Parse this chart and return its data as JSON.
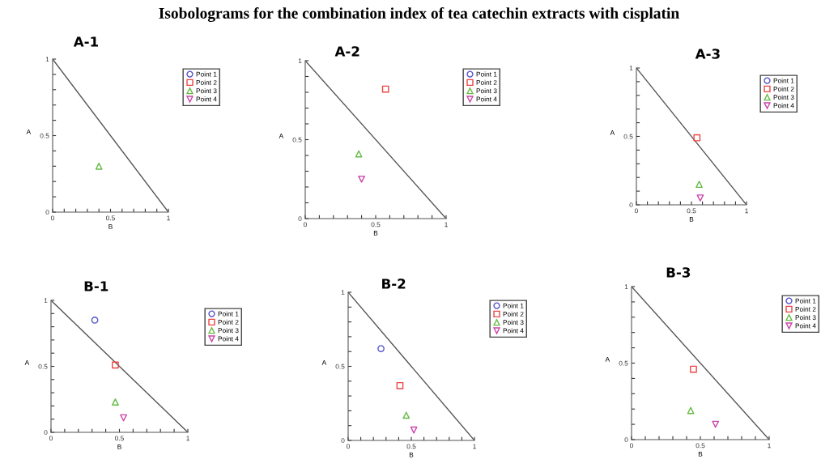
{
  "chart_data": [
    {
      "type": "scatter",
      "title": "A-1",
      "annotations": [
        "Isobolograms for the combination index of tea catechin extracts with cisplatin"
      ],
      "xlabel": "B",
      "ylabel": "A",
      "xlim": [
        0,
        1
      ],
      "ylim": [
        0,
        1
      ],
      "xticks": [
        0,
        {
          "value": 0.1,
          "label": null
        },
        {
          "value": 0.2,
          "label": null
        },
        {
          "value": 0.3,
          "label": null
        },
        {
          "value": 0.4,
          "label": null
        },
        0.5,
        {
          "value": 0.6,
          "label": null
        },
        {
          "value": 0.7,
          "label": null
        },
        {
          "value": 0.8,
          "label": null
        },
        {
          "value": 0.9,
          "label": null
        },
        1
      ],
      "yticks": [
        0,
        {
          "value": 0.1,
          "label": null
        },
        {
          "value": 0.2,
          "label": null
        },
        {
          "value": 0.3,
          "label": null
        },
        {
          "value": 0.4,
          "label": null
        },
        0.5,
        {
          "value": 0.6,
          "label": null
        },
        {
          "value": 0.7,
          "label": null
        },
        {
          "value": 0.8,
          "label": null
        },
        {
          "value": 0.9,
          "label": null
        },
        1
      ],
      "legend": "right",
      "grid": false,
      "series": [
        {
          "type": "line",
          "color": "#555555",
          "x": [
            0,
            1
          ],
          "values": [
            1,
            0
          ]
        },
        {
          "name": "Point 1",
          "color": "#5555cc",
          "marker": "circle"
        },
        {
          "name": "Point 2",
          "color": "#ee4444",
          "marker": "square"
        },
        {
          "name": "Point 3",
          "color": "#66bb44",
          "marker": "triangle",
          "x": [
            0.4
          ],
          "values": [
            0.3
          ]
        },
        {
          "name": "Point 4",
          "color": "#cc44aa",
          "marker": "triangle_down"
        }
      ]
    },
    {
      "type": "scatter",
      "title": "A-2",
      "xlabel": "B",
      "ylabel": "A",
      "xlim": [
        0,
        1
      ],
      "ylim": [
        0,
        1
      ],
      "xticks": [
        0,
        {
          "value": 0.1,
          "label": null
        },
        {
          "value": 0.2,
          "label": null
        },
        {
          "value": 0.3,
          "label": null
        },
        {
          "value": 0.4,
          "label": null
        },
        0.5,
        {
          "value": 0.6,
          "label": null
        },
        {
          "value": 0.7,
          "label": null
        },
        {
          "value": 0.8,
          "label": null
        },
        {
          "value": 0.9,
          "label": null
        },
        1
      ],
      "yticks": [
        0,
        {
          "value": 0.1,
          "label": null
        },
        {
          "value": 0.2,
          "label": null
        },
        {
          "value": 0.3,
          "label": null
        },
        {
          "value": 0.4,
          "label": null
        },
        0.5,
        {
          "value": 0.6,
          "label": null
        },
        {
          "value": 0.7,
          "label": null
        },
        {
          "value": 0.8,
          "label": null
        },
        {
          "value": 0.9,
          "label": null
        },
        1
      ],
      "legend": "right",
      "grid": false,
      "series": [
        {
          "type": "line",
          "color": "#555555",
          "x": [
            0,
            1
          ],
          "values": [
            1,
            0
          ]
        },
        {
          "name": "Point 1",
          "color": "#5555cc",
          "marker": "circle"
        },
        {
          "name": "Point 2",
          "color": "#ee4444",
          "marker": "square",
          "x": [
            0.57
          ],
          "values": [
            0.82
          ]
        },
        {
          "name": "Point 3",
          "color": "#66bb44",
          "marker": "triangle",
          "x": [
            0.38
          ],
          "values": [
            0.41
          ]
        },
        {
          "name": "Point 4",
          "color": "#cc44aa",
          "marker": "triangle_down",
          "x": [
            0.4
          ],
          "values": [
            0.25
          ]
        }
      ]
    },
    {
      "type": "scatter",
      "title": "A-3",
      "xlabel": "B",
      "ylabel": "A",
      "xlim": [
        0,
        1
      ],
      "ylim": [
        0,
        1
      ],
      "xticks": [
        0,
        {
          "value": 0.1,
          "label": null
        },
        {
          "value": 0.2,
          "label": null
        },
        {
          "value": 0.3,
          "label": null
        },
        {
          "value": 0.4,
          "label": null
        },
        0.5,
        {
          "value": 0.6,
          "label": null
        },
        {
          "value": 0.7,
          "label": null
        },
        {
          "value": 0.8,
          "label": null
        },
        {
          "value": 0.9,
          "label": null
        },
        1
      ],
      "yticks": [
        0,
        {
          "value": 0.1,
          "label": null
        },
        {
          "value": 0.2,
          "label": null
        },
        {
          "value": 0.3,
          "label": null
        },
        {
          "value": 0.4,
          "label": null
        },
        0.5,
        {
          "value": 0.6,
          "label": null
        },
        {
          "value": 0.7,
          "label": null
        },
        {
          "value": 0.8,
          "label": null
        },
        {
          "value": 0.9,
          "label": null
        },
        1
      ],
      "legend": "right",
      "grid": false,
      "series": [
        {
          "type": "line",
          "color": "#555555",
          "x": [
            0,
            1
          ],
          "values": [
            1,
            0
          ]
        },
        {
          "name": "Point 1",
          "color": "#5555cc",
          "marker": "circle"
        },
        {
          "name": "Point 2",
          "color": "#ee4444",
          "marker": "square",
          "x": [
            0.55
          ],
          "values": [
            0.49
          ]
        },
        {
          "name": "Point 3",
          "color": "#66bb44",
          "marker": "triangle",
          "x": [
            0.57
          ],
          "values": [
            0.15
          ]
        },
        {
          "name": "Point 4",
          "color": "#cc44aa",
          "marker": "triangle_down",
          "x": [
            0.58
          ],
          "values": [
            0.05
          ]
        }
      ]
    },
    {
      "type": "scatter",
      "title": "B-1",
      "xlabel": "B",
      "ylabel": "A",
      "xlim": [
        0,
        1
      ],
      "ylim": [
        0,
        1
      ],
      "xticks": [
        0,
        {
          "value": 0.1,
          "label": null
        },
        {
          "value": 0.2,
          "label": null
        },
        {
          "value": 0.3,
          "label": null
        },
        {
          "value": 0.4,
          "label": null
        },
        0.5,
        {
          "value": 0.6,
          "label": null
        },
        {
          "value": 0.7,
          "label": null
        },
        {
          "value": 0.8,
          "label": null
        },
        {
          "value": 0.9,
          "label": null
        },
        1
      ],
      "yticks": [
        0,
        {
          "value": 0.1,
          "label": null
        },
        {
          "value": 0.2,
          "label": null
        },
        {
          "value": 0.3,
          "label": null
        },
        {
          "value": 0.4,
          "label": null
        },
        0.5,
        {
          "value": 0.6,
          "label": null
        },
        {
          "value": 0.7,
          "label": null
        },
        {
          "value": 0.8,
          "label": null
        },
        {
          "value": 0.9,
          "label": null
        },
        1
      ],
      "legend": "right",
      "grid": false,
      "series": [
        {
          "type": "line",
          "color": "#555555",
          "x": [
            0,
            1
          ],
          "values": [
            1,
            0
          ]
        },
        {
          "name": "Point 1",
          "color": "#5555cc",
          "marker": "circle",
          "x": [
            0.32
          ],
          "values": [
            0.85
          ]
        },
        {
          "name": "Point 2",
          "color": "#ee4444",
          "marker": "square",
          "x": [
            0.47
          ],
          "values": [
            0.51
          ]
        },
        {
          "name": "Point 3",
          "color": "#66bb44",
          "marker": "triangle",
          "x": [
            0.47
          ],
          "values": [
            0.23
          ]
        },
        {
          "name": "Point 4",
          "color": "#cc44aa",
          "marker": "triangle_down",
          "x": [
            0.53
          ],
          "values": [
            0.11
          ]
        }
      ]
    },
    {
      "type": "scatter",
      "title": "B-2",
      "xlabel": "B",
      "ylabel": "A",
      "xlim": [
        0,
        1
      ],
      "ylim": [
        0,
        1
      ],
      "xticks": [
        0,
        {
          "value": 0.1,
          "label": null
        },
        {
          "value": 0.2,
          "label": null
        },
        {
          "value": 0.3,
          "label": null
        },
        {
          "value": 0.4,
          "label": null
        },
        0.5,
        {
          "value": 0.6,
          "label": null
        },
        {
          "value": 0.7,
          "label": null
        },
        {
          "value": 0.8,
          "label": null
        },
        {
          "value": 0.9,
          "label": null
        },
        1
      ],
      "yticks": [
        0,
        {
          "value": 0.1,
          "label": null
        },
        {
          "value": 0.2,
          "label": null
        },
        {
          "value": 0.3,
          "label": null
        },
        {
          "value": 0.4,
          "label": null
        },
        0.5,
        {
          "value": 0.6,
          "label": null
        },
        {
          "value": 0.7,
          "label": null
        },
        {
          "value": 0.8,
          "label": null
        },
        {
          "value": 0.9,
          "label": null
        },
        1
      ],
      "legend": "right",
      "grid": false,
      "series": [
        {
          "type": "line",
          "color": "#555555",
          "x": [
            0,
            1
          ],
          "values": [
            1,
            0
          ]
        },
        {
          "name": "Point 1",
          "color": "#5555cc",
          "marker": "circle",
          "x": [
            0.26
          ],
          "values": [
            0.62
          ]
        },
        {
          "name": "Point 2",
          "color": "#ee4444",
          "marker": "square",
          "x": [
            0.41
          ],
          "values": [
            0.37
          ]
        },
        {
          "name": "Point 3",
          "color": "#66bb44",
          "marker": "triangle",
          "x": [
            0.46
          ],
          "values": [
            0.17
          ]
        },
        {
          "name": "Point 4",
          "color": "#cc44aa",
          "marker": "triangle_down",
          "x": [
            0.52
          ],
          "values": [
            0.07
          ]
        }
      ]
    },
    {
      "type": "scatter",
      "title": "B-3",
      "xlabel": "B",
      "ylabel": "A",
      "xlim": [
        0,
        1
      ],
      "ylim": [
        0,
        1
      ],
      "xticks": [
        0,
        {
          "value": 0.1,
          "label": null
        },
        {
          "value": 0.2,
          "label": null
        },
        {
          "value": 0.3,
          "label": null
        },
        {
          "value": 0.4,
          "label": null
        },
        0.5,
        {
          "value": 0.6,
          "label": null
        },
        {
          "value": 0.7,
          "label": null
        },
        {
          "value": 0.8,
          "label": null
        },
        {
          "value": 0.9,
          "label": null
        },
        1
      ],
      "yticks": [
        0,
        {
          "value": 0.1,
          "label": null
        },
        {
          "value": 0.2,
          "label": null
        },
        {
          "value": 0.3,
          "label": null
        },
        {
          "value": 0.4,
          "label": null
        },
        0.5,
        {
          "value": 0.6,
          "label": null
        },
        {
          "value": 0.7,
          "label": null
        },
        {
          "value": 0.8,
          "label": null
        },
        {
          "value": 0.9,
          "label": null
        },
        1
      ],
      "legend": "right",
      "grid": false,
      "series": [
        {
          "type": "line",
          "color": "#555555",
          "x": [
            0,
            1
          ],
          "values": [
            1,
            0
          ]
        },
        {
          "name": "Point 1",
          "color": "#5555cc",
          "marker": "circle"
        },
        {
          "name": "Point 2",
          "color": "#ee4444",
          "marker": "square",
          "x": [
            0.45
          ],
          "values": [
            0.46
          ]
        },
        {
          "name": "Point 3",
          "color": "#66bb44",
          "marker": "triangle",
          "x": [
            0.43
          ],
          "values": [
            0.19
          ]
        },
        {
          "name": "Point 4",
          "color": "#cc44aa",
          "marker": "triangle_down",
          "x": [
            0.61
          ],
          "values": [
            0.1
          ]
        }
      ]
    }
  ]
}
